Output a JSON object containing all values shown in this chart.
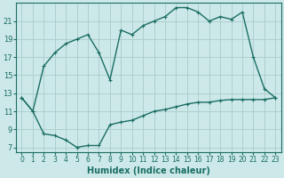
{
  "xlabel": "Humidex (Indice chaleur)",
  "bg_color": "#cce8e8",
  "grid_color": "#aacccc",
  "line_color": "#1a6e64",
  "upper_x": [
    0,
    1,
    2,
    3,
    4,
    5,
    6,
    7,
    8,
    9,
    10,
    11,
    12,
    13,
    14,
    15,
    16,
    17,
    18,
    19,
    20,
    21,
    22,
    23
  ],
  "upper_y": [
    12.5,
    11.0,
    16.0,
    17.5,
    18.5,
    19.0,
    19.5,
    17.5,
    14.5,
    20.0,
    19.5,
    20.5,
    21.0,
    21.5,
    22.5,
    22.5,
    22.0,
    21.0,
    21.5,
    21.2,
    22.0,
    17.0,
    13.5,
    12.5
  ],
  "lower_x": [
    0,
    1,
    2,
    3,
    4,
    5,
    6,
    7,
    8,
    9,
    10,
    11,
    12,
    13,
    14,
    15,
    16,
    17,
    18,
    19,
    20,
    21,
    22,
    23
  ],
  "lower_y": [
    12.5,
    11.0,
    8.5,
    8.3,
    7.8,
    7.0,
    7.2,
    7.2,
    9.5,
    9.8,
    10.0,
    10.5,
    11.0,
    11.2,
    11.5,
    11.8,
    12.0,
    12.0,
    12.2,
    12.3,
    12.3,
    12.3,
    12.3,
    12.5
  ],
  "xlim": [
    -0.5,
    23.5
  ],
  "ylim": [
    6.5,
    23.0
  ],
  "yticks": [
    7,
    9,
    11,
    13,
    15,
    17,
    19,
    21
  ],
  "xticks": [
    0,
    1,
    2,
    3,
    4,
    5,
    6,
    7,
    8,
    9,
    10,
    11,
    12,
    13,
    14,
    15,
    16,
    17,
    18,
    19,
    20,
    21,
    22,
    23
  ],
  "tick_fontsize": 5.5,
  "xlabel_fontsize": 7.0,
  "marker_size": 3.5,
  "linewidth": 1.0
}
